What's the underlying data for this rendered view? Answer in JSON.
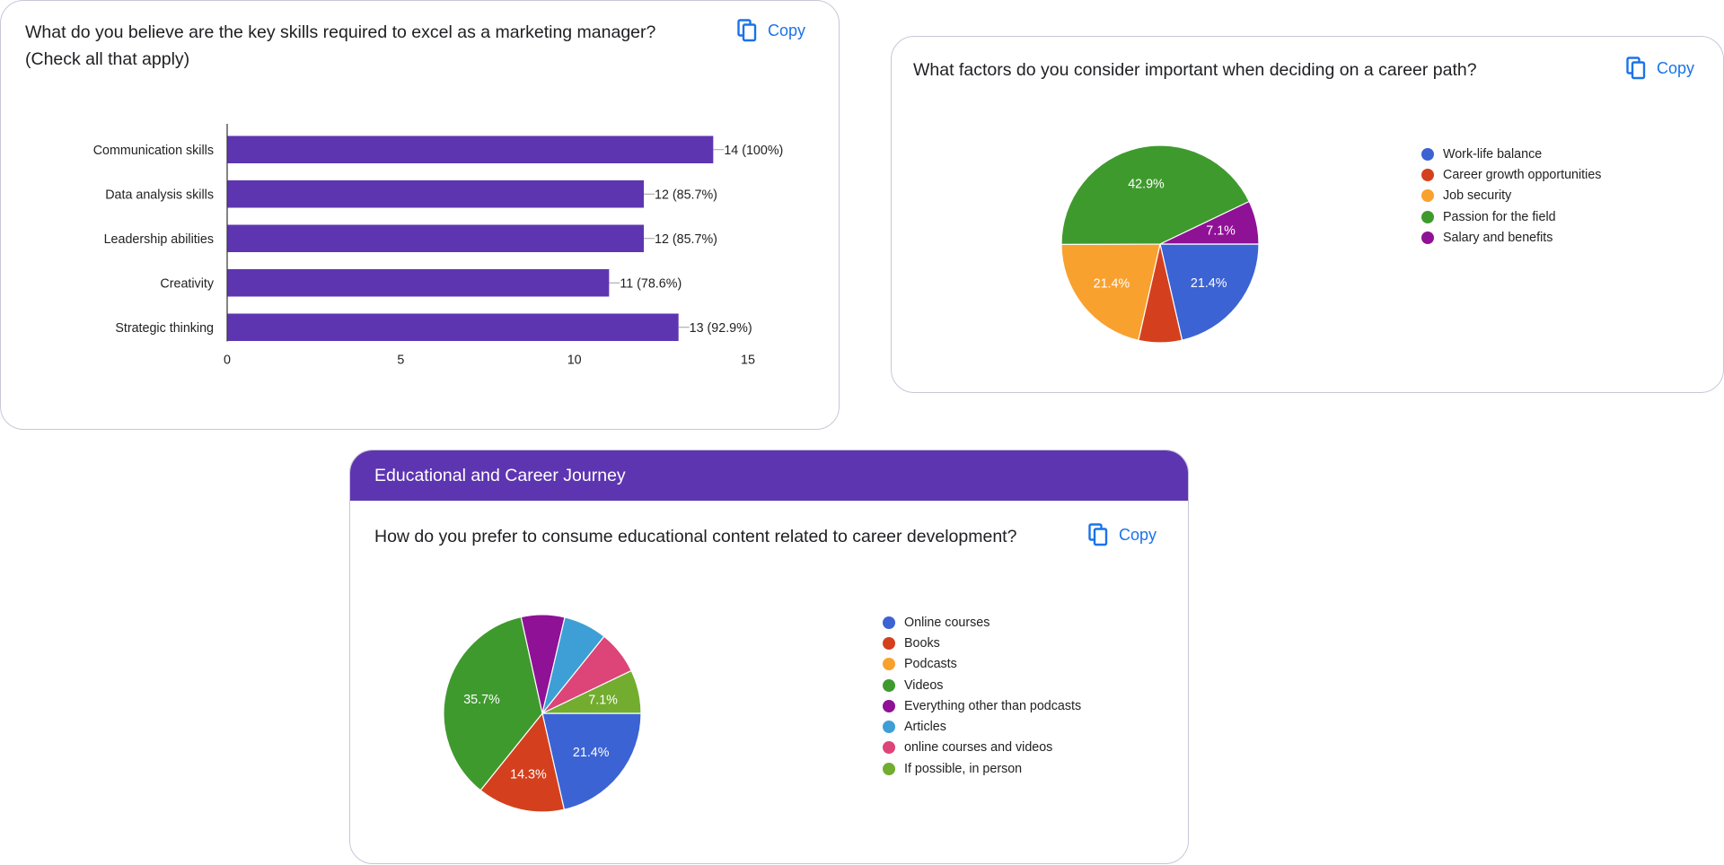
{
  "cards": [
    {
      "question": "What do you believe are the key skills required to excel as a marketing manager?",
      "question_line2": "(Check all that apply)",
      "copy_label": "Copy"
    },
    {
      "question": "What factors do you consider important when deciding on a career path?",
      "copy_label": "Copy"
    },
    {
      "section_title": "Educational and Career Journey",
      "question": "How do you prefer to consume educational content related to career development?",
      "copy_label": "Copy"
    }
  ],
  "chart_data": [
    {
      "type": "bar",
      "orientation": "horizontal",
      "categories": [
        "Communication skills",
        "Data analysis skills",
        "Leadership abilities",
        "Creativity",
        "Strategic thinking"
      ],
      "values": [
        14,
        12,
        12,
        11,
        13
      ],
      "value_labels": [
        "14 (100%)",
        "12 (85.7%)",
        "12 (85.7%)",
        "11 (78.6%)",
        "13 (92.9%)"
      ],
      "xlim": [
        0,
        15
      ],
      "ticks": [
        0,
        5,
        10,
        15
      ],
      "color": "#5e35b1",
      "grid": false,
      "legend": "none"
    },
    {
      "type": "pie",
      "labels": [
        "Work-life balance",
        "Career growth opportunities",
        "Job security",
        "Passion for the field",
        "Salary and benefits"
      ],
      "values": [
        21.4,
        7.1,
        21.4,
        42.9,
        7.1
      ],
      "slice_labels": [
        "21.4%",
        "",
        "21.4%",
        "42.9%",
        "7.1%"
      ],
      "colors": [
        "#3b63d3",
        "#d4401e",
        "#f9a12e",
        "#3f9a2e",
        "#8f1196"
      ],
      "legend": "right"
    },
    {
      "type": "pie",
      "labels": [
        "Online courses",
        "Books",
        "Podcasts",
        "Videos",
        "Everything other than podcasts",
        "Articles",
        "online courses and videos",
        "If possible, in person"
      ],
      "values": [
        21.4,
        14.3,
        0,
        35.7,
        7.1,
        7.1,
        7.1,
        7.1
      ],
      "slice_labels": [
        "21.4%",
        "14.3%",
        "",
        "35.7%",
        "",
        "",
        "",
        "7.1%"
      ],
      "colors": [
        "#3b63d3",
        "#d4401e",
        "#f9a12e",
        "#3f9a2e",
        "#8f1196",
        "#3d9fd5",
        "#dd4477",
        "#72ad2f"
      ],
      "legend": "right"
    }
  ]
}
